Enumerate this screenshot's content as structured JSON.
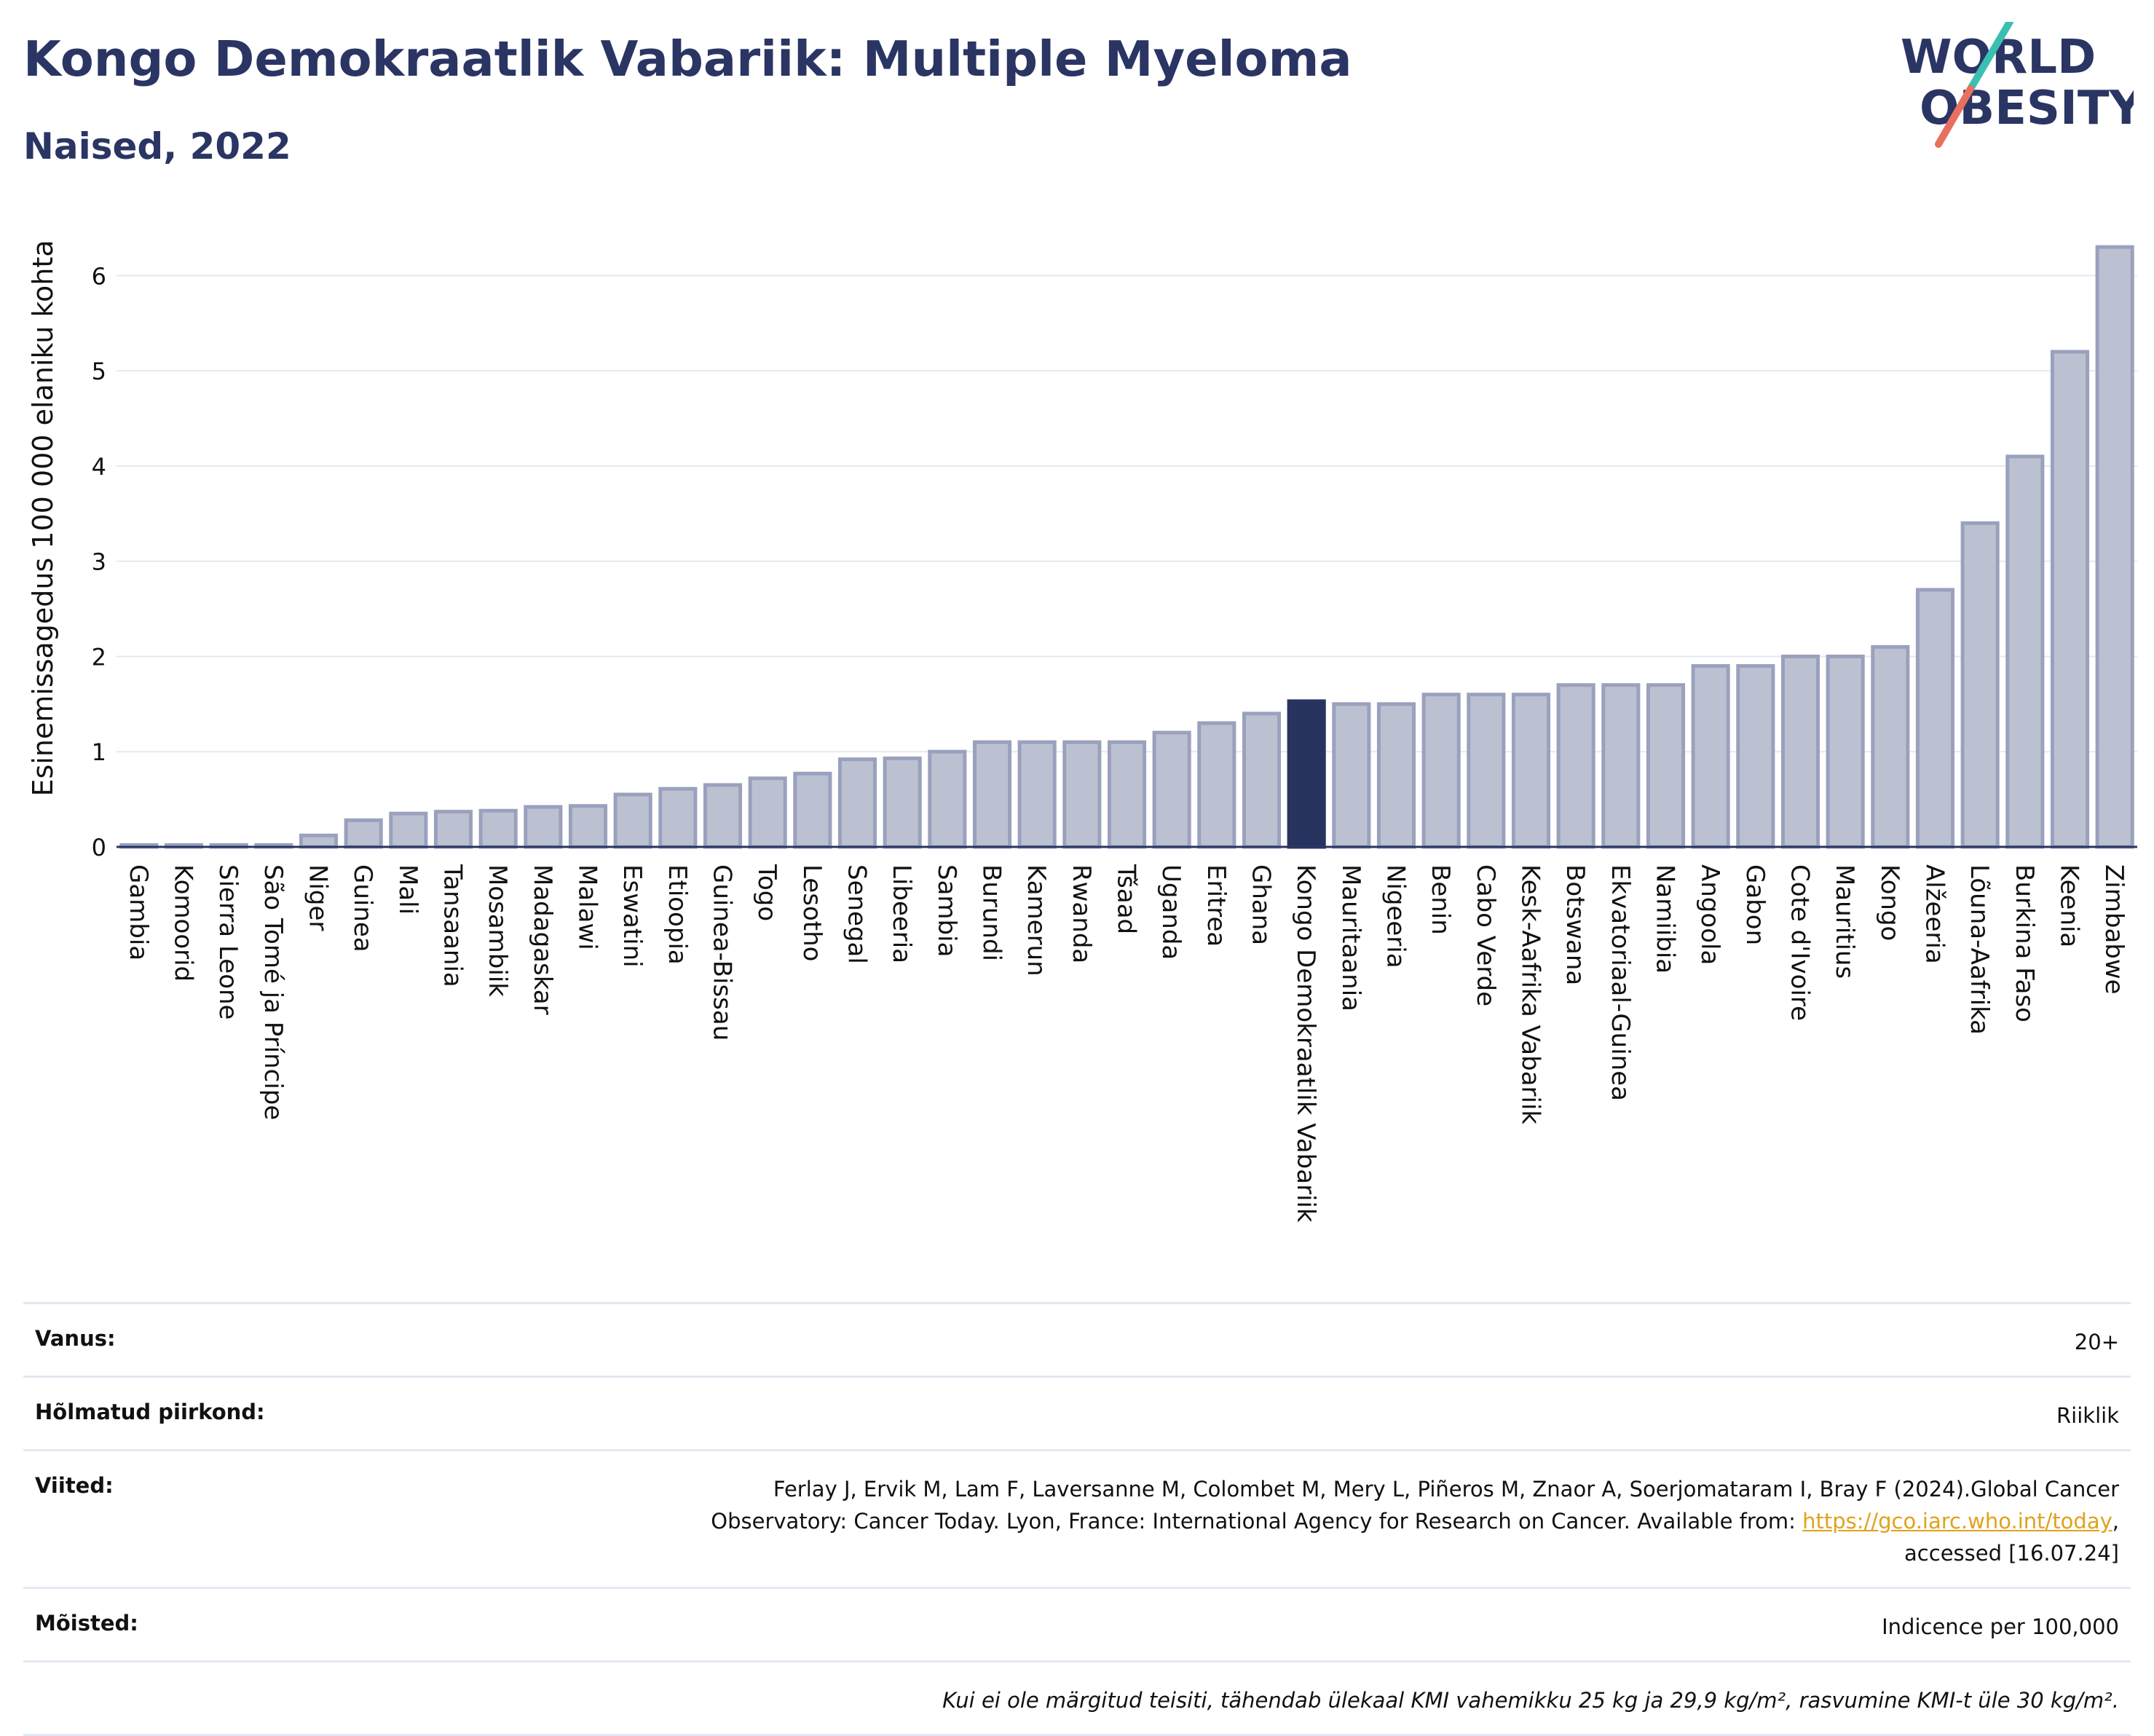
{
  "header": {
    "title": "Kongo Demokraatlik Vabariik: Multiple Myeloma",
    "subtitle": "Naised, 2022"
  },
  "logo": {
    "line1": "WORLD",
    "line2": "OBESITY"
  },
  "colors": {
    "bar": "#bcc1d2",
    "bar_stroke": "#9aa1bd",
    "highlight": "#28335f",
    "grid": "#e6e8f0",
    "text": "#2a3563"
  },
  "chart_data": {
    "type": "bar",
    "ylabel": "Esinemissagedus 100 000 elaniku kohta",
    "ylim": [
      0,
      6.6
    ],
    "yticks": [
      0,
      1,
      2,
      3,
      4,
      5,
      6
    ],
    "grid": true,
    "highlight": "Kongo Demokraatlik Vabariik",
    "categories": [
      "Gambia",
      "Komoorid",
      "Sierra Leone",
      "São Tomé ja Príncipe",
      "Niger",
      "Guinea",
      "Mali",
      "Tansaania",
      "Mosambiik",
      "Madagaskar",
      "Malawi",
      "Eswatini",
      "Etioopia",
      "Guinea-Bissau",
      "Togo",
      "Lesotho",
      "Senegal",
      "Libeeria",
      "Sambia",
      "Burundi",
      "Kamerun",
      "Rwanda",
      "Tšaad",
      "Uganda",
      "Eritrea",
      "Ghana",
      "Kongo Demokraatlik Vabariik",
      "Mauritaania",
      "Nigeeria",
      "Benin",
      "Cabo Verde",
      "Kesk-Aafrika Vabariik",
      "Botswana",
      "Ekvatoriaal-Guinea",
      "Namiibia",
      "Angoola",
      "Gabon",
      "Cote d'Ivoire",
      "Mauritius",
      "Kongo",
      "Alžeeria",
      "Lõuna-Aafrika",
      "Burkina Faso",
      "Keenia",
      "Zimbabwe"
    ],
    "values": [
      0.02,
      0.02,
      0.02,
      0.02,
      0.12,
      0.28,
      0.35,
      0.37,
      0.38,
      0.42,
      0.43,
      0.55,
      0.61,
      0.65,
      0.72,
      0.77,
      0.92,
      0.93,
      1.0,
      1.1,
      1.1,
      1.1,
      1.1,
      1.2,
      1.3,
      1.4,
      1.53,
      1.5,
      1.5,
      1.6,
      1.6,
      1.6,
      1.7,
      1.7,
      1.7,
      1.9,
      1.9,
      2.0,
      2.0,
      2.1,
      2.7,
      3.4,
      4.1,
      5.2,
      6.3
    ]
  },
  "meta": {
    "age_label": "Vanus:",
    "age_value": "20+",
    "region_label": "Hõlmatud piirkond:",
    "region_value": "Riiklik",
    "refs_label": "Viited:",
    "refs_line1": "Ferlay J, Ervik M, Lam F, Laversanne M, Colombet M, Mery L, Piñeros M, Znaor A, Soerjomataram I, Bray F (2024).Global Cancer",
    "refs_line2": "Observatory: Cancer Today. Lyon, France: International Agency for Research on Cancer. Available from: ",
    "refs_link": "https://gco.iarc.who.int/today",
    "refs_line2_end": ",",
    "refs_line3": "accessed [16.07.24]",
    "def_label": "Mõisted:",
    "def_value": "Indicence per 100,000",
    "note": "Kui ei ole märgitud teisiti, tähendab ülekaal KMI vahemikku 25 kg ja 29,9 kg/m², rasvumine KMI-t üle 30 kg/m²."
  }
}
